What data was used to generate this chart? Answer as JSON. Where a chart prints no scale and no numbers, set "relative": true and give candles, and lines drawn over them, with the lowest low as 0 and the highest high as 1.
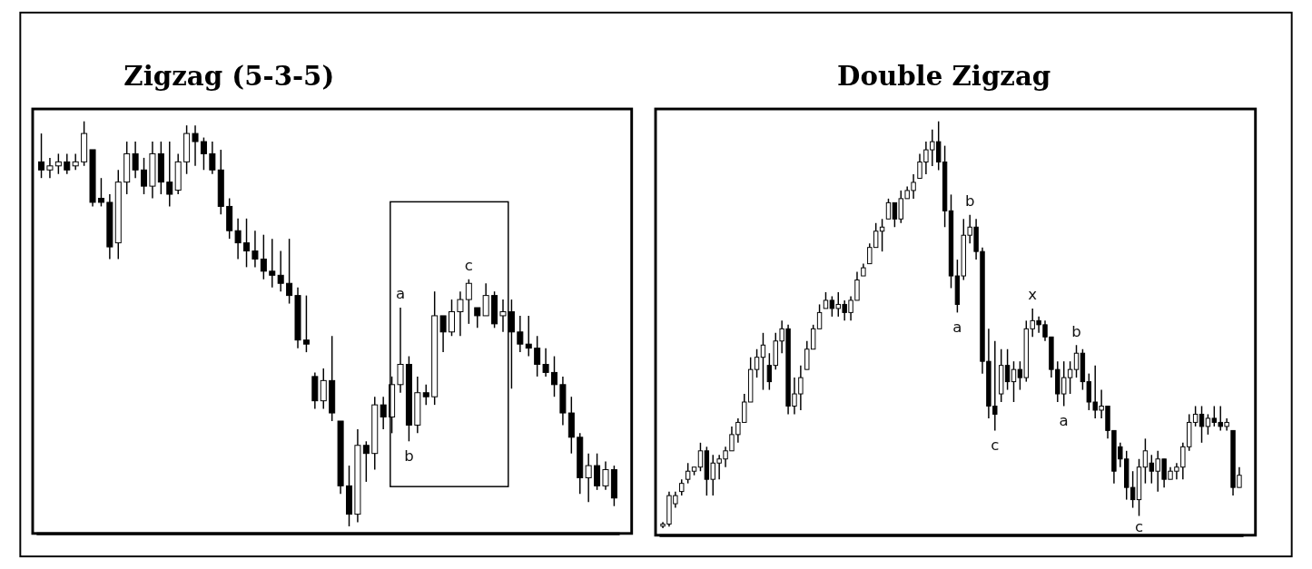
{
  "chart_data": [
    {
      "type": "candlestick",
      "title": "Zigzag (5-3-5)",
      "relative": true,
      "categories": [
        null,
        null,
        null,
        null,
        null,
        null,
        null,
        null,
        null,
        null,
        null,
        null,
        null,
        null,
        null,
        null,
        null,
        null,
        null,
        null,
        null,
        null,
        null,
        null,
        null,
        null,
        null,
        null,
        null,
        null,
        null,
        null,
        null,
        null,
        null,
        null,
        null,
        null,
        null,
        null,
        null,
        null,
        null,
        null,
        null,
        null,
        null,
        null,
        null,
        null,
        null,
        null,
        null,
        null,
        null,
        null,
        null,
        null,
        null,
        null,
        null,
        null,
        null,
        null,
        null,
        null,
        null,
        null
      ],
      "ohlc": [
        [
          0.9,
          0.97,
          0.86,
          0.88
        ],
        [
          0.88,
          0.91,
          0.86,
          0.89
        ],
        [
          0.89,
          0.92,
          0.87,
          0.9
        ],
        [
          0.9,
          0.92,
          0.87,
          0.88
        ],
        [
          0.89,
          0.92,
          0.88,
          0.9
        ],
        [
          0.9,
          1,
          0.89,
          0.97
        ],
        [
          0.93,
          0.93,
          0.79,
          0.8
        ],
        [
          0.81,
          0.86,
          0.79,
          0.8
        ],
        [
          0.8,
          0.82,
          0.66,
          0.69
        ],
        [
          0.7,
          0.88,
          0.66,
          0.85
        ],
        [
          0.85,
          0.95,
          0.82,
          0.92
        ],
        [
          0.92,
          0.95,
          0.86,
          0.88
        ],
        [
          0.88,
          0.91,
          0.82,
          0.84
        ],
        [
          0.84,
          0.95,
          0.81,
          0.92
        ],
        [
          0.92,
          0.95,
          0.82,
          0.85
        ],
        [
          0.85,
          0.95,
          0.79,
          0.82
        ],
        [
          0.83,
          0.92,
          0.82,
          0.9
        ],
        [
          0.9,
          0.99,
          0.87,
          0.97
        ],
        [
          0.97,
          0.99,
          0.89,
          0.95
        ],
        [
          0.95,
          0.96,
          0.88,
          0.92
        ],
        [
          0.92,
          0.95,
          0.87,
          0.88
        ],
        [
          0.88,
          0.93,
          0.77,
          0.79
        ],
        [
          0.79,
          0.81,
          0.71,
          0.73
        ],
        [
          0.73,
          0.76,
          0.66,
          0.7
        ],
        [
          0.7,
          0.76,
          0.64,
          0.68
        ],
        [
          0.68,
          0.73,
          0.64,
          0.66
        ],
        [
          0.66,
          0.72,
          0.61,
          0.63
        ],
        [
          0.63,
          0.71,
          0.59,
          0.62
        ],
        [
          0.62,
          0.68,
          0.58,
          0.6
        ],
        [
          0.6,
          0.71,
          0.55,
          0.57
        ],
        [
          0.57,
          0.59,
          0.44,
          0.46
        ],
        [
          0.46,
          0.57,
          0.43,
          0.45
        ],
        [
          0.37,
          0.38,
          0.29,
          0.31
        ],
        [
          0.31,
          0.39,
          0.29,
          0.36
        ],
        [
          0.36,
          0.47,
          0.26,
          0.28
        ],
        [
          0.26,
          0.26,
          0.08,
          0.1
        ],
        [
          0.1,
          0.15,
          0,
          0.03
        ],
        [
          0.03,
          0.24,
          0.01,
          0.2
        ],
        [
          0.2,
          0.21,
          0.11,
          0.18
        ],
        [
          0.18,
          0.32,
          0.14,
          0.3
        ],
        [
          0.3,
          0.32,
          0.24,
          0.27
        ],
        [
          0.27,
          0.37,
          0.23,
          0.35
        ],
        [
          0.35,
          0.54,
          0.33,
          0.4
        ],
        [
          0.4,
          0.42,
          0.21,
          0.25
        ],
        [
          0.25,
          0.37,
          0.23,
          0.33
        ],
        [
          0.33,
          0.35,
          0.3,
          0.32
        ],
        [
          0.32,
          0.58,
          0.3,
          0.52
        ],
        [
          0.52,
          0.52,
          0.43,
          0.48
        ],
        [
          0.48,
          0.56,
          0.47,
          0.53
        ],
        [
          0.53,
          0.58,
          0.47,
          0.56
        ],
        [
          0.56,
          0.61,
          0.5,
          0.6
        ],
        [
          0.54,
          0.54,
          0.49,
          0.52
        ],
        [
          0.52,
          0.6,
          0.52,
          0.57
        ],
        [
          0.57,
          0.58,
          0.49,
          0.5
        ],
        [
          0.52,
          0.56,
          0.48,
          0.53
        ],
        [
          0.53,
          0.56,
          0.34,
          0.48
        ],
        [
          0.48,
          0.52,
          0.43,
          0.45
        ],
        [
          0.45,
          0.52,
          0.42,
          0.44
        ],
        [
          0.44,
          0.47,
          0.37,
          0.4
        ],
        [
          0.4,
          0.44,
          0.37,
          0.38
        ],
        [
          0.38,
          0.42,
          0.32,
          0.35
        ],
        [
          0.35,
          0.37,
          0.25,
          0.28
        ],
        [
          0.28,
          0.32,
          0.18,
          0.22
        ],
        [
          0.22,
          0.23,
          0.08,
          0.12
        ],
        [
          0.12,
          0.18,
          0.06,
          0.15
        ],
        [
          0.15,
          0.18,
          0.09,
          0.1
        ],
        [
          0.1,
          0.16,
          0.09,
          0.14
        ],
        [
          0.14,
          0.15,
          0.05,
          0.07
        ]
      ],
      "annotations": [
        {
          "text": "a",
          "y": 0.54
        },
        {
          "text": "b",
          "y": 0.21
        },
        {
          "text": "c",
          "y": 0.61
        }
      ]
    },
    {
      "type": "candlestick",
      "title": "Double Zigzag",
      "relative": true,
      "categories": [
        null,
        null,
        null,
        null,
        null,
        null,
        null,
        null,
        null,
        null,
        null,
        null,
        null,
        null,
        null,
        null,
        null,
        null,
        null,
        null,
        null,
        null,
        null,
        null,
        null,
        null,
        null,
        null,
        null,
        null,
        null,
        null,
        null,
        null,
        null,
        null,
        null,
        null,
        null,
        null,
        null,
        null,
        null,
        null,
        null,
        null,
        null,
        null,
        null,
        null,
        null,
        null,
        null,
        null,
        null,
        null,
        null,
        null,
        null,
        null,
        null,
        null,
        null,
        null,
        null,
        null,
        null,
        null,
        null,
        null,
        null,
        null,
        null,
        null,
        null,
        null,
        null,
        null,
        null,
        null,
        null,
        null,
        null,
        null,
        null,
        null,
        null,
        null,
        null,
        null,
        null,
        null,
        null
      ],
      "ohlc": [
        [
          0.005,
          0.015,
          0,
          0.01
        ],
        [
          0.01,
          0.09,
          0.004,
          0.08
        ],
        [
          0.06,
          0.09,
          0.05,
          0.08
        ],
        [
          0.09,
          0.12,
          0.08,
          0.11
        ],
        [
          0.12,
          0.16,
          0.11,
          0.14
        ],
        [
          0.14,
          0.15,
          0.13,
          0.15
        ],
        [
          0.15,
          0.21,
          0.14,
          0.19
        ],
        [
          0.19,
          0.2,
          0.08,
          0.12
        ],
        [
          0.12,
          0.18,
          0.08,
          0.16
        ],
        [
          0.16,
          0.18,
          0.12,
          0.17
        ],
        [
          0.17,
          0.2,
          0.15,
          0.19
        ],
        [
          0.19,
          0.25,
          0.19,
          0.23
        ],
        [
          0.23,
          0.27,
          0.21,
          0.26
        ],
        [
          0.26,
          0.33,
          0.26,
          0.31
        ],
        [
          0.31,
          0.42,
          0.31,
          0.39
        ],
        [
          0.39,
          0.44,
          0.37,
          0.42
        ],
        [
          0.42,
          0.48,
          0.34,
          0.45
        ],
        [
          0.4,
          0.43,
          0.34,
          0.36
        ],
        [
          0.4,
          0.48,
          0.39,
          0.46
        ],
        [
          0.46,
          0.51,
          0.43,
          0.49
        ],
        [
          0.49,
          0.5,
          0.28,
          0.3
        ],
        [
          0.3,
          0.37,
          0.28,
          0.33
        ],
        [
          0.33,
          0.4,
          0.29,
          0.37
        ],
        [
          0.39,
          0.46,
          0.39,
          0.44
        ],
        [
          0.44,
          0.5,
          0.44,
          0.49
        ],
        [
          0.49,
          0.55,
          0.49,
          0.53
        ],
        [
          0.54,
          0.58,
          0.54,
          0.56
        ],
        [
          0.56,
          0.57,
          0.52,
          0.54
        ],
        [
          0.54,
          0.58,
          0.52,
          0.55
        ],
        [
          0.55,
          0.56,
          0.51,
          0.53
        ],
        [
          0.53,
          0.57,
          0.51,
          0.56
        ],
        [
          0.56,
          0.63,
          0.56,
          0.61
        ],
        [
          0.62,
          0.65,
          0.62,
          0.64
        ],
        [
          0.65,
          0.7,
          0.65,
          0.69
        ],
        [
          0.69,
          0.75,
          0.69,
          0.73
        ],
        [
          0.73,
          0.76,
          0.68,
          0.74
        ],
        [
          0.76,
          0.81,
          0.76,
          0.8
        ],
        [
          0.8,
          0.8,
          0.74,
          0.76
        ],
        [
          0.76,
          0.83,
          0.75,
          0.81
        ],
        [
          0.81,
          0.84,
          0.81,
          0.83
        ],
        [
          0.83,
          0.87,
          0.81,
          0.85
        ],
        [
          0.86,
          0.92,
          0.86,
          0.9
        ],
        [
          0.9,
          0.95,
          0.87,
          0.93
        ],
        [
          0.93,
          0.98,
          0.89,
          0.95
        ],
        [
          0.95,
          1,
          0.88,
          0.9
        ],
        [
          0.9,
          0.94,
          0.74,
          0.78
        ],
        [
          0.78,
          0.82,
          0.59,
          0.62
        ],
        [
          0.62,
          0.66,
          0.53,
          0.55
        ],
        [
          0.62,
          0.76,
          0.61,
          0.72
        ],
        [
          0.72,
          0.77,
          0.7,
          0.74
        ],
        [
          0.74,
          0.76,
          0.66,
          0.68
        ],
        [
          0.68,
          0.69,
          0.38,
          0.41
        ],
        [
          0.41,
          0.49,
          0.27,
          0.3
        ],
        [
          0.3,
          0.46,
          0.24,
          0.28
        ],
        [
          0.33,
          0.44,
          0.31,
          0.4
        ],
        [
          0.4,
          0.44,
          0.34,
          0.36
        ],
        [
          0.36,
          0.41,
          0.31,
          0.39
        ],
        [
          0.39,
          0.41,
          0.34,
          0.37
        ],
        [
          0.37,
          0.51,
          0.36,
          0.49
        ],
        [
          0.49,
          0.54,
          0.47,
          0.51
        ],
        [
          0.51,
          0.52,
          0.48,
          0.5
        ],
        [
          0.5,
          0.51,
          0.46,
          0.47
        ],
        [
          0.47,
          0.47,
          0.37,
          0.39
        ],
        [
          0.39,
          0.41,
          0.31,
          0.33
        ],
        [
          0.33,
          0.41,
          0.3,
          0.37
        ],
        [
          0.37,
          0.41,
          0.33,
          0.39
        ],
        [
          0.39,
          0.45,
          0.37,
          0.43
        ],
        [
          0.43,
          0.44,
          0.34,
          0.36
        ],
        [
          0.36,
          0.38,
          0.29,
          0.31
        ],
        [
          0.31,
          0.4,
          0.27,
          0.29
        ],
        [
          0.29,
          0.34,
          0.27,
          0.3
        ],
        [
          0.3,
          0.3,
          0.22,
          0.24
        ],
        [
          0.24,
          0.24,
          0.11,
          0.14
        ],
        [
          0.2,
          0.21,
          0.15,
          0.17
        ],
        [
          0.17,
          0.19,
          0.07,
          0.1
        ],
        [
          0.1,
          0.14,
          0.05,
          0.07
        ],
        [
          0.07,
          0.17,
          0.03,
          0.15
        ],
        [
          0.15,
          0.22,
          0.11,
          0.19
        ],
        [
          0.16,
          0.18,
          0.11,
          0.14
        ],
        [
          0.14,
          0.19,
          0.09,
          0.17
        ],
        [
          0.17,
          0.17,
          0.1,
          0.12
        ],
        [
          0.12,
          0.15,
          0.12,
          0.14
        ],
        [
          0.14,
          0.16,
          0.12,
          0.15
        ],
        [
          0.15,
          0.21,
          0.12,
          0.2
        ],
        [
          0.2,
          0.28,
          0.19,
          0.26
        ],
        [
          0.26,
          0.3,
          0.25,
          0.28
        ],
        [
          0.28,
          0.3,
          0.21,
          0.25
        ],
        [
          0.25,
          0.28,
          0.23,
          0.27
        ],
        [
          0.27,
          0.3,
          0.25,
          0.26
        ],
        [
          0.26,
          0.3,
          0.24,
          0.25
        ],
        [
          0.25,
          0.27,
          0.24,
          0.26
        ],
        [
          0.24,
          0.24,
          0.08,
          0.1
        ],
        [
          0.1,
          0.15,
          0.1,
          0.13
        ]
      ],
      "annotations": [
        {
          "text": "a",
          "y": 0.53
        },
        {
          "text": "b",
          "y": 0.77
        },
        {
          "text": "c",
          "y": 0.24
        },
        {
          "text": "x",
          "y": 0.54
        },
        {
          "text": "a",
          "y": 0.3
        },
        {
          "text": "b",
          "y": 0.45
        },
        {
          "text": "c",
          "y": 0.03
        }
      ]
    }
  ]
}
